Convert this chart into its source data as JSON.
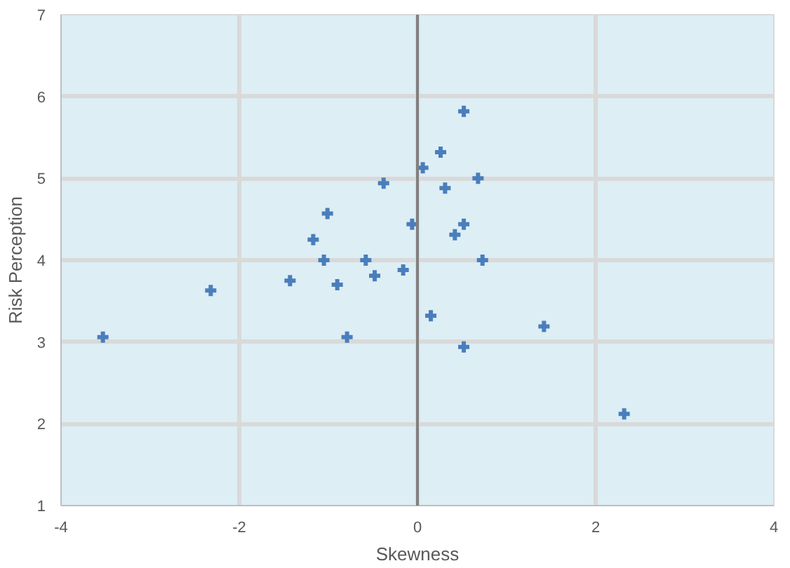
{
  "chart_data": {
    "type": "scatter",
    "xlabel": "Skewness",
    "ylabel": "Risk Perception",
    "x": [
      -3.53,
      -2.32,
      -1.43,
      -1.17,
      -1.01,
      -1.05,
      -0.9,
      -0.79,
      -0.58,
      -0.48,
      -0.38,
      -0.16,
      -0.06,
      0.06,
      0.15,
      0.26,
      0.52,
      0.68,
      0.31,
      0.52,
      0.42,
      0.73,
      1.42,
      0.52,
      2.32
    ],
    "series": [
      {
        "color": "#4a7ebb",
        "values": [
          3.06,
          3.63,
          3.75,
          4.25,
          4.57,
          4.0,
          3.7,
          3.06,
          4.0,
          3.81,
          4.94,
          3.88,
          4.44,
          5.13,
          3.32,
          5.32,
          5.82,
          5.0,
          4.88,
          4.44,
          4.31,
          4.0,
          3.19,
          2.94,
          2.12
        ]
      }
    ],
    "xlim": [
      -4,
      4
    ],
    "ylim": [
      1,
      7
    ],
    "xticks": [
      -4,
      -2,
      0,
      2,
      4
    ],
    "yticks": [
      1,
      2,
      3,
      4,
      5,
      6,
      7
    ],
    "grid": true,
    "marker": "cross",
    "ref_lines": [
      {
        "axis": "x",
        "value": 0,
        "color": "#808080"
      }
    ]
  }
}
